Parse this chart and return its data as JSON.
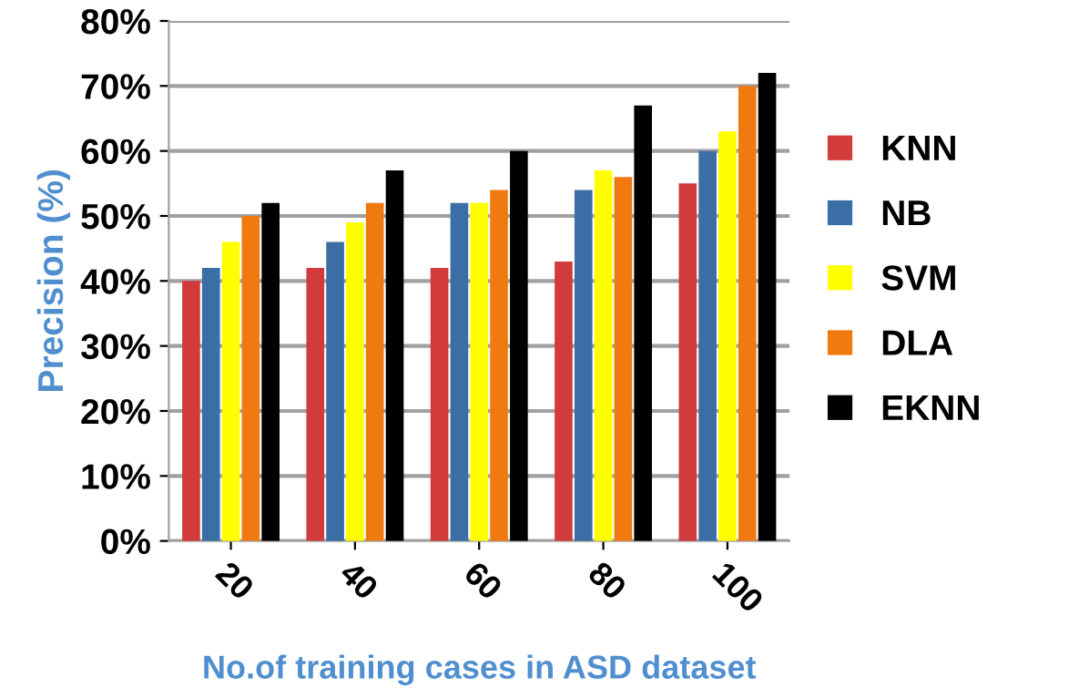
{
  "chart_data": {
    "type": "bar",
    "xlabel": "No.of training cases in ASD dataset",
    "ylabel": "Precision (%)",
    "categories": [
      "20",
      "40",
      "60",
      "80",
      "100"
    ],
    "series": [
      {
        "name": "KNN",
        "color": "#d13b3b",
        "values": [
          40,
          42,
          42,
          43,
          55
        ]
      },
      {
        "name": "NB",
        "color": "#3a6ea5",
        "values": [
          42,
          46,
          52,
          54,
          60
        ]
      },
      {
        "name": "SVM",
        "color": "#ffff00",
        "values": [
          46,
          49,
          52,
          57,
          63
        ]
      },
      {
        "name": "DLA",
        "color": "#f07a10",
        "values": [
          50,
          52,
          54,
          56,
          70
        ]
      },
      {
        "name": "EKNN",
        "color": "#000000",
        "values": [
          52,
          57,
          60,
          67,
          72
        ]
      }
    ],
    "ylim": [
      0,
      80
    ],
    "yticks": [
      {
        "value": 0,
        "label": "0%"
      },
      {
        "value": 10,
        "label": "10%"
      },
      {
        "value": 20,
        "label": "20%"
      },
      {
        "value": 30,
        "label": "30%"
      },
      {
        "value": 40,
        "label": "40%"
      },
      {
        "value": 50,
        "label": "50%"
      },
      {
        "value": 60,
        "label": "60%"
      },
      {
        "value": 70,
        "label": "70%"
      },
      {
        "value": 80,
        "label": "80%"
      }
    ],
    "grid": "y",
    "legend": "right"
  }
}
